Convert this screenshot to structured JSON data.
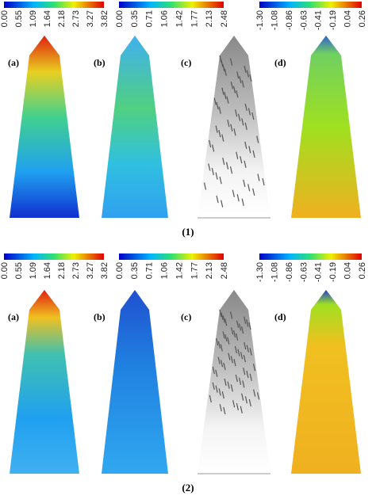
{
  "figure": {
    "rows": [
      {
        "label": "(1)",
        "panels": [
          {
            "label": "(a)",
            "colorbar_ticks": [
              "0.00",
              "0.55",
              "1.09",
              "1.64",
              "2.18",
              "2.73",
              "3.27",
              "3.82"
            ]
          },
          {
            "label": "(b)",
            "colorbar_ticks": [
              "0.00",
              "0.35",
              "0.71",
              "1.06",
              "1.42",
              "1.77",
              "2.13",
              "2.48"
            ]
          },
          {
            "label": "(c)"
          },
          {
            "label": "(d)",
            "colorbar_ticks": [
              "-1.30",
              "-1.08",
              "-0.86",
              "-0.63",
              "-0.41",
              "-0.19",
              "0.04",
              "0.26"
            ]
          }
        ]
      },
      {
        "label": "(2)",
        "panels": [
          {
            "label": "(a)",
            "colorbar_ticks": [
              "0.00",
              "0.55",
              "1.09",
              "1.64",
              "2.18",
              "2.73",
              "3.27",
              "3.82"
            ]
          },
          {
            "label": "(b)",
            "colorbar_ticks": [
              "0.00",
              "0.35",
              "0.71",
              "1.06",
              "1.42",
              "1.77",
              "2.13",
              "2.48"
            ]
          },
          {
            "label": "(c)"
          },
          {
            "label": "(d)",
            "colorbar_ticks": [
              "-1.30",
              "-1.08",
              "-0.86",
              "-0.63",
              "-0.41",
              "-0.19",
              "0.04",
              "0.26"
            ]
          }
        ]
      }
    ]
  }
}
